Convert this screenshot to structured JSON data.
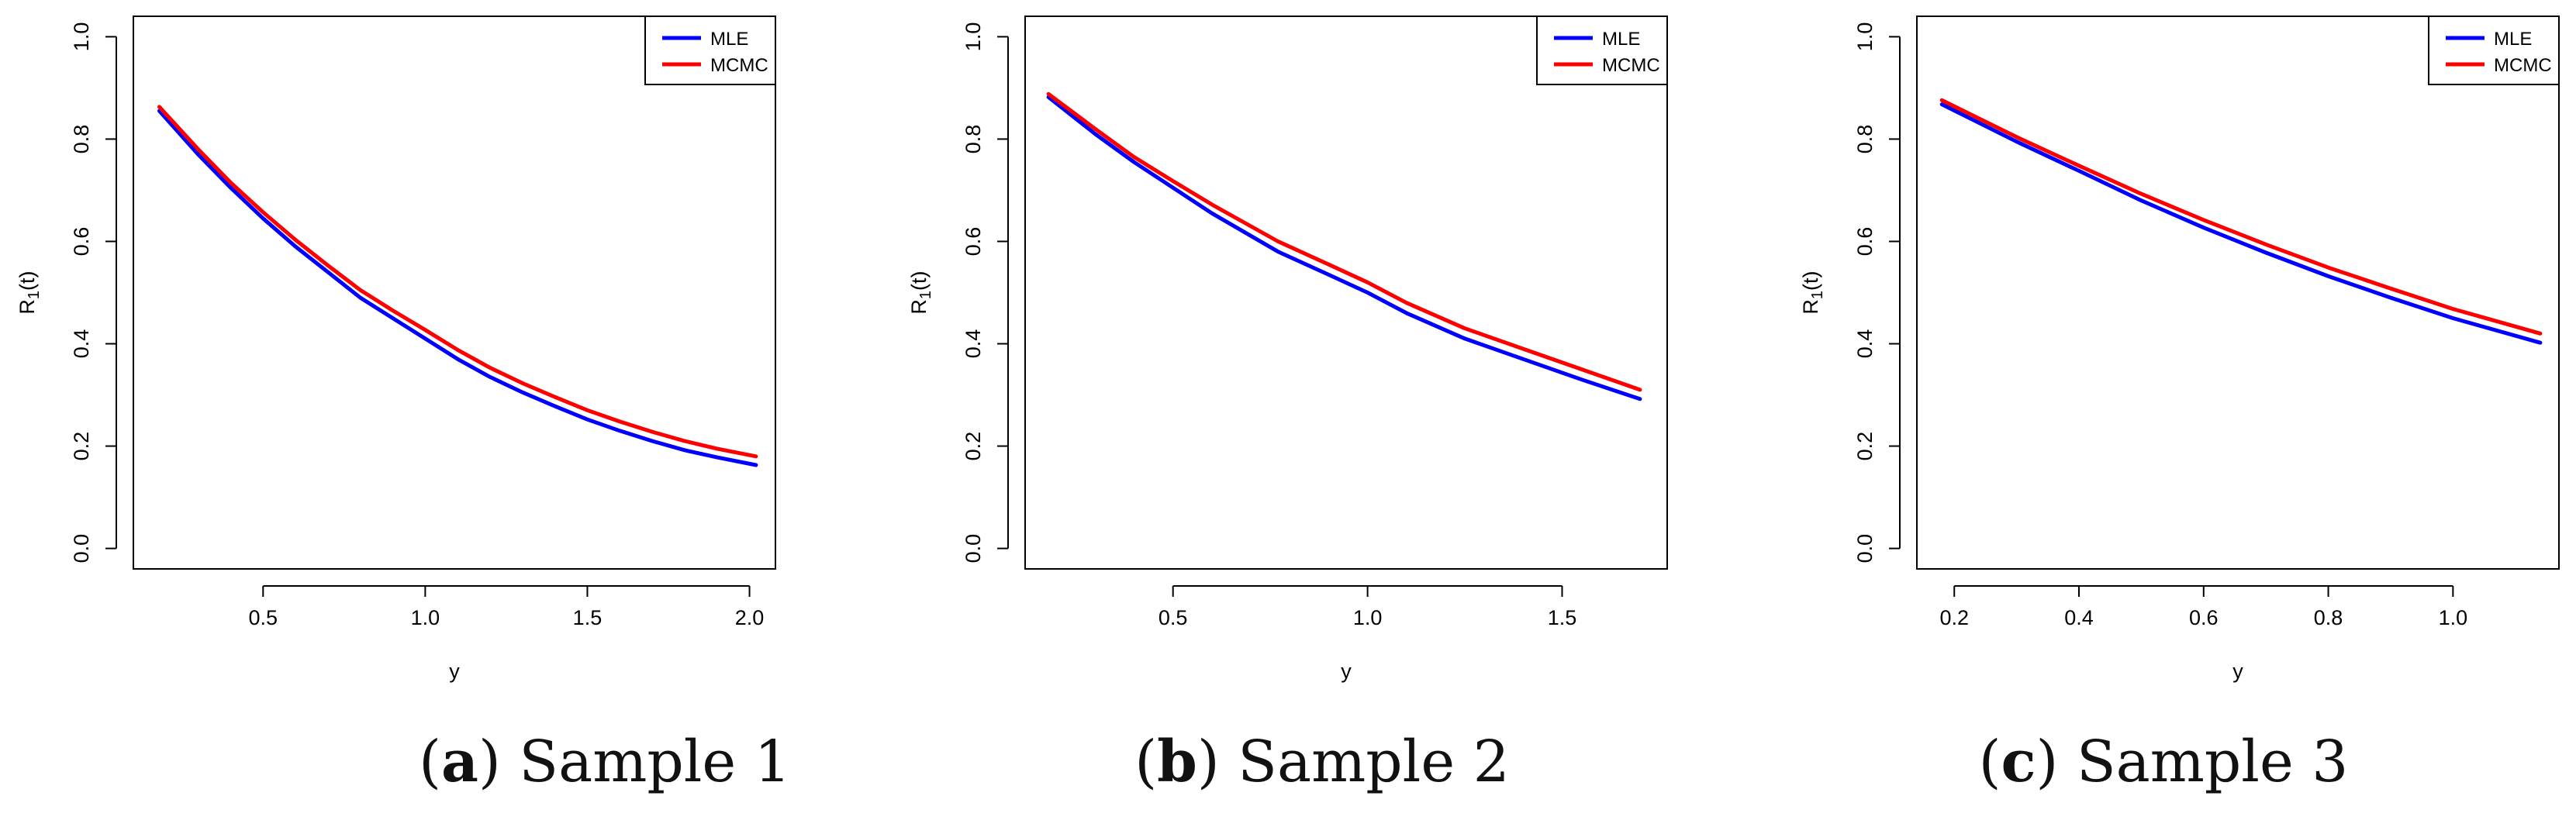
{
  "chart_data": [
    {
      "type": "line",
      "caption": {
        "letter": "a",
        "text": "Sample 1"
      },
      "xlabel": "y",
      "ylabel_main": "R",
      "ylabel_sub": "1",
      "ylabel_tail": "(t)",
      "xlim": [
        0.1,
        2.08
      ],
      "ylim": [
        -0.04,
        1.04
      ],
      "xticks": [
        "0.5",
        "1.0",
        "1.5",
        "2.0"
      ],
      "yticks": [
        "0.0",
        "0.2",
        "0.4",
        "0.6",
        "0.8",
        "1.0"
      ],
      "legend": "top-right",
      "series": [
        {
          "name": "MLE",
          "color": "#0000ff",
          "x": [
            0.18,
            0.3,
            0.4,
            0.5,
            0.6,
            0.7,
            0.8,
            0.9,
            1.0,
            1.1,
            1.2,
            1.3,
            1.4,
            1.5,
            1.6,
            1.7,
            1.8,
            1.9,
            2.02
          ],
          "y": [
            0.855,
            0.77,
            0.705,
            0.645,
            0.59,
            0.54,
            0.49,
            0.45,
            0.41,
            0.37,
            0.335,
            0.305,
            0.278,
            0.252,
            0.23,
            0.21,
            0.192,
            0.178,
            0.163
          ]
        },
        {
          "name": "MCMC",
          "color": "#ff0000",
          "x": [
            0.18,
            0.3,
            0.4,
            0.5,
            0.6,
            0.7,
            0.8,
            0.9,
            1.0,
            1.1,
            1.2,
            1.3,
            1.4,
            1.5,
            1.6,
            1.7,
            1.8,
            1.9,
            2.02
          ],
          "y": [
            0.863,
            0.78,
            0.715,
            0.657,
            0.603,
            0.553,
            0.505,
            0.465,
            0.427,
            0.388,
            0.353,
            0.323,
            0.296,
            0.27,
            0.248,
            0.228,
            0.21,
            0.195,
            0.18
          ]
        }
      ]
    },
    {
      "type": "line",
      "caption": {
        "letter": "b",
        "text": "Sample 2"
      },
      "xlabel": "y",
      "ylabel_main": "R",
      "ylabel_sub": "1",
      "ylabel_tail": "(t)",
      "xlim": [
        0.12,
        1.77
      ],
      "ylim": [
        -0.04,
        1.04
      ],
      "xticks": [
        "0.5",
        "1.0",
        "1.5"
      ],
      "yticks": [
        "0.0",
        "0.2",
        "0.4",
        "0.6",
        "0.8",
        "1.0"
      ],
      "legend": "top-right",
      "series": [
        {
          "name": "MLE",
          "color": "#0000ff",
          "x": [
            0.18,
            0.3,
            0.4,
            0.5,
            0.6,
            0.77,
            0.9,
            1.0,
            1.1,
            1.25,
            1.4,
            1.55,
            1.7
          ],
          "y": [
            0.882,
            0.81,
            0.755,
            0.705,
            0.655,
            0.58,
            0.535,
            0.5,
            0.46,
            0.41,
            0.37,
            0.33,
            0.292
          ]
        },
        {
          "name": "MCMC",
          "color": "#ff0000",
          "x": [
            0.18,
            0.3,
            0.4,
            0.5,
            0.6,
            0.77,
            0.9,
            1.0,
            1.1,
            1.25,
            1.4,
            1.55,
            1.7
          ],
          "y": [
            0.888,
            0.82,
            0.765,
            0.718,
            0.672,
            0.6,
            0.555,
            0.52,
            0.48,
            0.43,
            0.39,
            0.35,
            0.31
          ]
        }
      ]
    },
    {
      "type": "line",
      "caption": {
        "letter": "c",
        "text": "Sample 3"
      },
      "xlabel": "y",
      "ylabel_main": "R",
      "ylabel_sub": "1",
      "ylabel_tail": "(t)",
      "xlim": [
        0.14,
        1.17
      ],
      "ylim": [
        -0.04,
        1.04
      ],
      "xticks": [
        "0.2",
        "0.4",
        "0.6",
        "0.8",
        "1.0"
      ],
      "yticks": [
        "0.0",
        "0.2",
        "0.4",
        "0.6",
        "0.8",
        "1.0"
      ],
      "legend": "top-right",
      "series": [
        {
          "name": "MLE",
          "color": "#0000ff",
          "x": [
            0.18,
            0.3,
            0.4,
            0.5,
            0.6,
            0.7,
            0.8,
            0.9,
            1.0,
            1.14
          ],
          "y": [
            0.868,
            0.795,
            0.738,
            0.68,
            0.627,
            0.578,
            0.532,
            0.49,
            0.45,
            0.402
          ]
        },
        {
          "name": "MCMC",
          "color": "#ff0000",
          "x": [
            0.18,
            0.3,
            0.4,
            0.5,
            0.6,
            0.7,
            0.8,
            0.9,
            1.0,
            1.14
          ],
          "y": [
            0.876,
            0.804,
            0.748,
            0.693,
            0.642,
            0.594,
            0.549,
            0.508,
            0.468,
            0.42
          ]
        }
      ]
    }
  ]
}
